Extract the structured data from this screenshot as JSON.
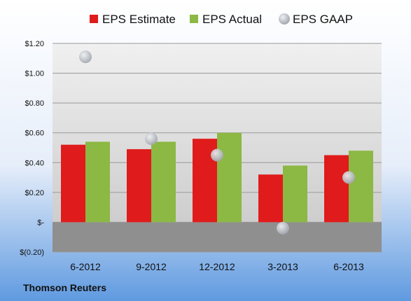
{
  "chart_data": {
    "type": "bar",
    "categories": [
      "6-2012",
      "9-2012",
      "12-2012",
      "3-2013",
      "6-2013"
    ],
    "series": [
      {
        "name": "EPS Estimate",
        "kind": "bar",
        "color": "#e01b1b",
        "values": [
          0.52,
          0.49,
          0.56,
          0.32,
          0.45
        ]
      },
      {
        "name": "EPS Actual",
        "kind": "bar",
        "color": "#8cb844",
        "values": [
          0.54,
          0.54,
          0.6,
          0.38,
          0.48
        ]
      },
      {
        "name": "EPS GAAP",
        "kind": "scatter",
        "color": "#b8bcc4",
        "values": [
          1.11,
          0.56,
          0.45,
          -0.04,
          0.3
        ]
      }
    ],
    "y_ticks": [
      -0.2,
      0,
      0.2,
      0.4,
      0.6,
      0.8,
      1.0,
      1.2
    ],
    "y_tick_labels": [
      "$(0.20)",
      "$-",
      "$0.20",
      "$0.40",
      "$0.60",
      "$0.80",
      "$1.00",
      "$1.20"
    ],
    "ylim": [
      -0.2,
      1.2
    ],
    "grid": true,
    "legend_position": "top"
  },
  "credit": "Thomson Reuters"
}
